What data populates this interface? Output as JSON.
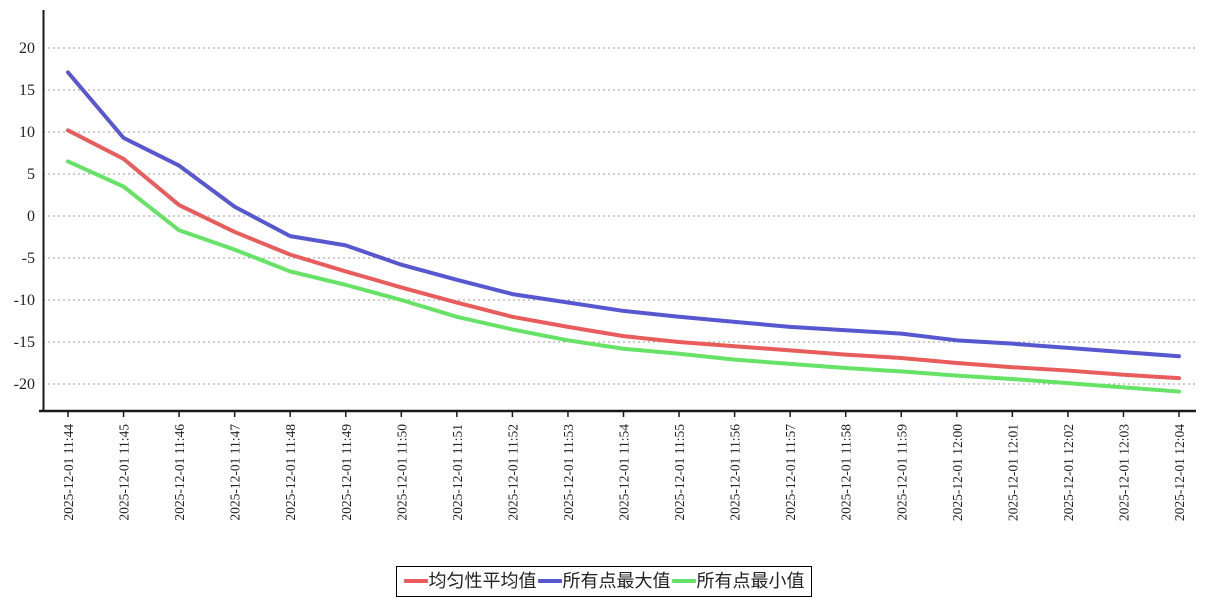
{
  "chart_data": {
    "type": "line",
    "title": "",
    "xlabel": "",
    "ylabel": "",
    "x": [
      "2025-12-01 11:44",
      "2025-12-01 11:45",
      "2025-12-01 11:46",
      "2025-12-01 11:47",
      "2025-12-01 11:48",
      "2025-12-01 11:49",
      "2025-12-01 11:50",
      "2025-12-01 11:51",
      "2025-12-01 11:52",
      "2025-12-01 11:53",
      "2025-12-01 11:54",
      "2025-12-01 11:55",
      "2025-12-01 11:56",
      "2025-12-01 11:57",
      "2025-12-01 11:58",
      "2025-12-01 11:59",
      "2025-12-01 12:00",
      "2025-12-01 12:01",
      "2025-12-01 12:02",
      "2025-12-01 12:03",
      "2025-12-01 12:04"
    ],
    "series": [
      {
        "name": "均匀性平均值",
        "color": "#e85c5c",
        "values": [
          10.2,
          6.8,
          1.3,
          -1.9,
          -4.6,
          -6.6,
          -8.5,
          -10.3,
          -12.0,
          -13.2,
          -14.3,
          -15.0,
          -15.5,
          -16.0,
          -16.5,
          -16.9,
          -17.5,
          -18.0,
          -18.4,
          -18.9,
          -19.3
        ]
      },
      {
        "name": "所有点最大值",
        "color": "#5757d0",
        "values": [
          17.1,
          9.3,
          6.0,
          1.1,
          -2.4,
          -3.5,
          -5.8,
          -7.6,
          -9.3,
          -10.3,
          -11.3,
          -12.0,
          -12.6,
          -13.2,
          -13.6,
          -14.0,
          -14.8,
          -15.2,
          -15.7,
          -16.2,
          -16.7
        ]
      },
      {
        "name": "所有点最小值",
        "color": "#66e366",
        "values": [
          6.5,
          3.5,
          -1.7,
          -4.0,
          -6.6,
          -8.2,
          -10.0,
          -12.0,
          -13.5,
          -14.8,
          -15.8,
          -16.4,
          -17.1,
          -17.6,
          -18.1,
          -18.5,
          -19.0,
          -19.4,
          -19.9,
          -20.4,
          -20.9
        ]
      }
    ],
    "yticks": [
      20,
      15,
      10,
      5,
      0,
      -5,
      -10,
      -15,
      -20
    ],
    "ylim": [
      -23.2,
      24.5
    ],
    "grid": "horizontal-dashed",
    "legend_position": "bottom-center",
    "axis_color": "#1a1a1a",
    "grid_color": "#999999",
    "tick_label_color": "#222222"
  }
}
